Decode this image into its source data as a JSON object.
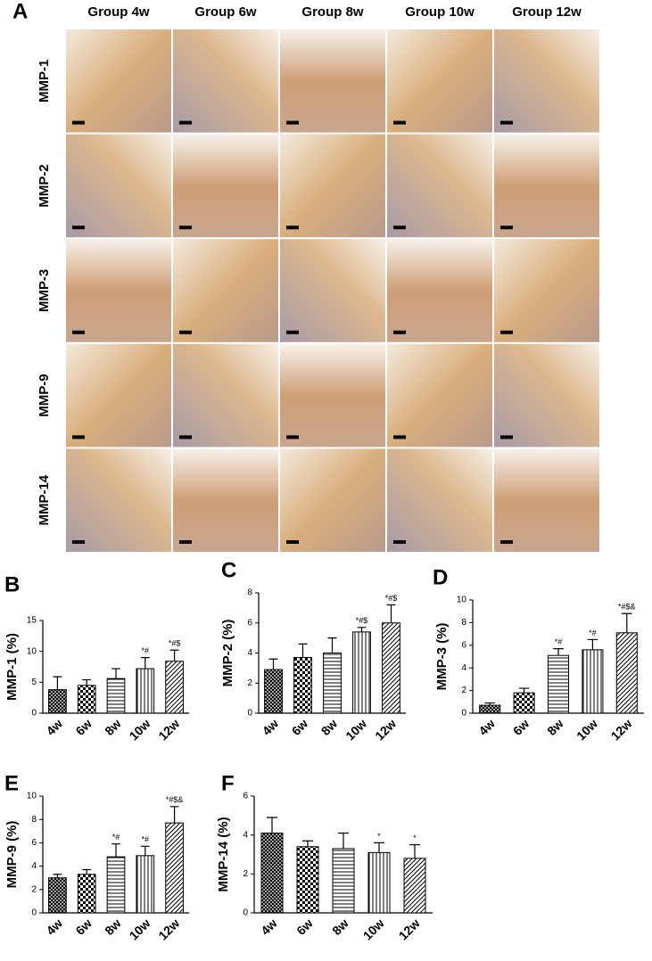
{
  "panel_a": {
    "label": "A",
    "columns": [
      "Group 4w",
      "Group 6w",
      "Group 8w",
      "Group 10w",
      "Group 12w"
    ],
    "rows": [
      "MMP-1",
      "MMP-2",
      "MMP-3",
      "MMP-9",
      "MMP-14"
    ]
  },
  "chart_data": [
    {
      "type": "bar",
      "panel": "B",
      "ylabel": "MMP-1 (%)",
      "categories": [
        "4w",
        "6w",
        "8w",
        "10w",
        "12w"
      ],
      "values": [
        3.8,
        4.5,
        5.6,
        7.2,
        8.4
      ],
      "errors": [
        2.1,
        0.9,
        1.6,
        1.8,
        1.8
      ],
      "annotations": [
        null,
        null,
        null,
        "*#",
        "*#$"
      ],
      "patterns": [
        "crosshatch",
        "checker",
        "horizontal",
        "vertical",
        "diagonal"
      ],
      "ylim": [
        0,
        15
      ],
      "yticks": [
        0,
        5,
        10,
        15
      ]
    },
    {
      "type": "bar",
      "panel": "C",
      "ylabel": "MMP-2 (%)",
      "categories": [
        "4w",
        "6w",
        "8w",
        "10w",
        "12w"
      ],
      "values": [
        2.9,
        3.7,
        4.0,
        5.4,
        6.0
      ],
      "errors": [
        0.7,
        0.9,
        1.0,
        0.3,
        1.2
      ],
      "annotations": [
        null,
        null,
        null,
        "*#$",
        "*#$"
      ],
      "patterns": [
        "crosshatch",
        "checker",
        "horizontal",
        "vertical",
        "diagonal"
      ],
      "ylim": [
        0,
        8
      ],
      "yticks": [
        0,
        2,
        4,
        6,
        8
      ]
    },
    {
      "type": "bar",
      "panel": "D",
      "ylabel": "MMP-3 (%)",
      "categories": [
        "4w",
        "6w",
        "8w",
        "10w",
        "12w"
      ],
      "values": [
        0.7,
        1.8,
        5.1,
        5.6,
        7.1
      ],
      "errors": [
        0.2,
        0.4,
        0.6,
        0.9,
        1.7
      ],
      "annotations": [
        null,
        null,
        "*#",
        "*#",
        "*#$&"
      ],
      "patterns": [
        "crosshatch",
        "checker",
        "horizontal",
        "vertical",
        "diagonal"
      ],
      "ylim": [
        0,
        10
      ],
      "yticks": [
        0,
        2,
        4,
        6,
        8,
        10
      ]
    },
    {
      "type": "bar",
      "panel": "E",
      "ylabel": "MMP-9 (%)",
      "categories": [
        "4w",
        "6w",
        "8w",
        "10w",
        "12w"
      ],
      "values": [
        3.0,
        3.3,
        4.8,
        4.9,
        7.7
      ],
      "errors": [
        0.3,
        0.4,
        1.1,
        0.8,
        1.4
      ],
      "annotations": [
        null,
        null,
        "*#",
        "*#",
        "*#$&"
      ],
      "patterns": [
        "crosshatch",
        "checker",
        "horizontal",
        "vertical",
        "diagonal"
      ],
      "ylim": [
        0,
        10
      ],
      "yticks": [
        0,
        2,
        4,
        6,
        8,
        10
      ]
    },
    {
      "type": "bar",
      "panel": "F",
      "ylabel": "MMP-14 (%)",
      "categories": [
        "4w",
        "6w",
        "8w",
        "10w",
        "12w"
      ],
      "values": [
        4.1,
        3.4,
        3.3,
        3.1,
        2.8
      ],
      "errors": [
        0.8,
        0.3,
        0.8,
        0.5,
        0.7
      ],
      "annotations": [
        null,
        null,
        null,
        "*",
        "*"
      ],
      "patterns": [
        "crosshatch",
        "checker",
        "horizontal",
        "vertical",
        "diagonal"
      ],
      "ylim": [
        0,
        6
      ],
      "yticks": [
        0,
        2,
        4,
        6
      ]
    }
  ]
}
